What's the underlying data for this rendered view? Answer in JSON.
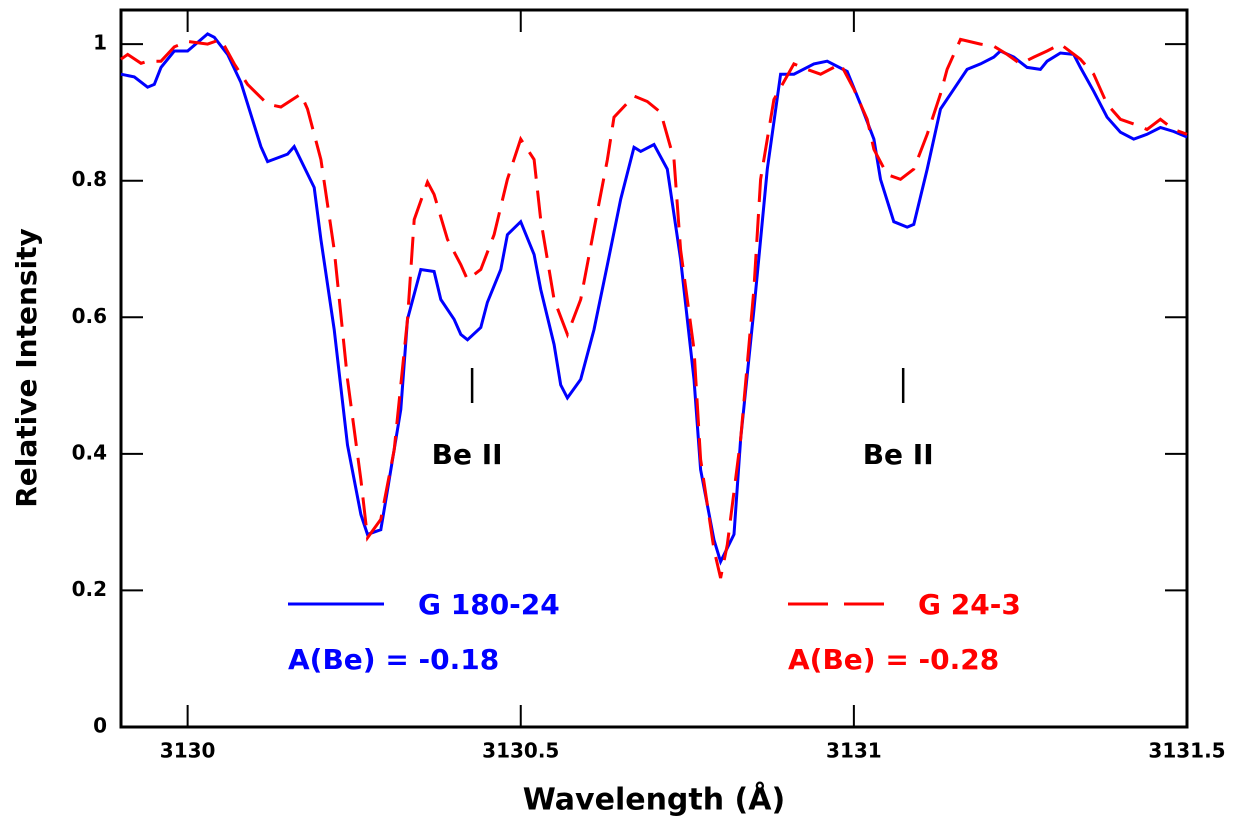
{
  "chart_data": {
    "type": "line",
    "x_label": "Wavelength (Å)",
    "y_label": "Relative Intensity",
    "xlim": [
      3129.9,
      3131.5
    ],
    "ylim": [
      0,
      1.05
    ],
    "xticks": [
      3130,
      3130.5,
      3131,
      3131.5
    ],
    "yticks": [
      0,
      0.2,
      0.4,
      0.6,
      0.8,
      1
    ],
    "line_markers": [
      {
        "x": 3130.427,
        "label": "Be II"
      },
      {
        "x": 3131.074,
        "label": "Be II"
      }
    ],
    "series": [
      {
        "name": "G 180-24",
        "annotation": "A(Be) = -0.18",
        "color": "#0000ff",
        "line_style": "solid",
        "x": [
          3129.9,
          3129.92,
          3129.94,
          3129.95,
          3129.96,
          3129.98,
          3130.0,
          3130.03,
          3130.04,
          3130.06,
          3130.08,
          3130.11,
          3130.12,
          3130.15,
          3130.16,
          3130.19,
          3130.2,
          3130.22,
          3130.24,
          3130.26,
          3130.27,
          3130.29,
          3130.3,
          3130.32,
          3130.33,
          3130.35,
          3130.37,
          3130.38,
          3130.4,
          3130.41,
          3130.42,
          3130.44,
          3130.45,
          3130.47,
          3130.48,
          3130.5,
          3130.52,
          3130.53,
          3130.55,
          3130.56,
          3130.57,
          3130.59,
          3130.61,
          3130.63,
          3130.65,
          3130.67,
          3130.68,
          3130.7,
          3130.72,
          3130.74,
          3130.76,
          3130.77,
          3130.79,
          3130.8,
          3130.82,
          3130.83,
          3130.85,
          3130.87,
          3130.89,
          3130.91,
          3130.94,
          3130.96,
          3130.99,
          3131.01,
          3131.03,
          3131.04,
          3131.06,
          3131.08,
          3131.09,
          3131.11,
          3131.13,
          3131.15,
          3131.17,
          3131.19,
          3131.21,
          3131.22,
          3131.24,
          3131.26,
          3131.28,
          3131.29,
          3131.31,
          3131.33,
          3131.34,
          3131.36,
          3131.38,
          3131.4,
          3131.42,
          3131.44,
          3131.46,
          3131.48,
          3131.5
        ],
        "values": [
          0.956,
          0.952,
          0.937,
          0.941,
          0.966,
          0.99,
          0.99,
          1.015,
          1.01,
          0.985,
          0.944,
          0.85,
          0.828,
          0.839,
          0.85,
          0.79,
          0.714,
          0.582,
          0.413,
          0.311,
          0.282,
          0.289,
          0.347,
          0.465,
          0.597,
          0.67,
          0.667,
          0.626,
          0.597,
          0.575,
          0.567,
          0.585,
          0.622,
          0.67,
          0.721,
          0.74,
          0.692,
          0.641,
          0.56,
          0.501,
          0.482,
          0.509,
          0.582,
          0.677,
          0.773,
          0.849,
          0.843,
          0.853,
          0.817,
          0.685,
          0.509,
          0.377,
          0.274,
          0.242,
          0.282,
          0.421,
          0.611,
          0.817,
          0.956,
          0.956,
          0.971,
          0.975,
          0.96,
          0.912,
          0.861,
          0.802,
          0.74,
          0.732,
          0.736,
          0.817,
          0.905,
          0.934,
          0.963,
          0.971,
          0.981,
          0.99,
          0.981,
          0.966,
          0.963,
          0.975,
          0.987,
          0.985,
          0.966,
          0.931,
          0.893,
          0.871,
          0.861,
          0.868,
          0.878,
          0.872,
          0.864
        ]
      },
      {
        "name": "G 24-3",
        "annotation": "A(Be) = -0.28",
        "color": "#ff0000",
        "line_style": "dashed",
        "x": [
          3129.9,
          3129.91,
          3129.93,
          3129.94,
          3129.96,
          3129.98,
          3130.0,
          3130.03,
          3130.05,
          3130.07,
          3130.09,
          3130.12,
          3130.14,
          3130.17,
          3130.18,
          3130.2,
          3130.22,
          3130.24,
          3130.26,
          3130.27,
          3130.29,
          3130.31,
          3130.33,
          3130.34,
          3130.36,
          3130.37,
          3130.39,
          3130.41,
          3130.42,
          3130.44,
          3130.46,
          3130.48,
          3130.5,
          3130.52,
          3130.53,
          3130.55,
          3130.57,
          3130.59,
          3130.61,
          3130.63,
          3130.64,
          3130.67,
          3130.69,
          3130.71,
          3130.73,
          3130.74,
          3130.76,
          3130.77,
          3130.79,
          3130.8,
          3130.81,
          3130.83,
          3130.85,
          3130.86,
          3130.88,
          3130.91,
          3130.93,
          3130.95,
          3130.98,
          3131.0,
          3131.02,
          3131.03,
          3131.05,
          3131.07,
          3131.09,
          3131.11,
          3131.13,
          3131.14,
          3131.16,
          3131.19,
          3131.21,
          3131.23,
          3131.25,
          3131.27,
          3131.29,
          3131.31,
          3131.34,
          3131.36,
          3131.38,
          3131.4,
          3131.42,
          3131.44,
          3131.46,
          3131.48,
          3131.5
        ],
        "values": [
          0.978,
          0.985,
          0.972,
          0.975,
          0.975,
          0.996,
          1.004,
          1.0,
          1.007,
          0.971,
          0.941,
          0.912,
          0.908,
          0.927,
          0.905,
          0.831,
          0.699,
          0.509,
          0.362,
          0.277,
          0.304,
          0.406,
          0.597,
          0.743,
          0.798,
          0.78,
          0.714,
          0.677,
          0.655,
          0.67,
          0.721,
          0.802,
          0.861,
          0.831,
          0.743,
          0.626,
          0.575,
          0.626,
          0.729,
          0.831,
          0.893,
          0.924,
          0.916,
          0.9,
          0.831,
          0.699,
          0.553,
          0.392,
          0.26,
          0.218,
          0.267,
          0.421,
          0.641,
          0.802,
          0.919,
          0.971,
          0.963,
          0.956,
          0.971,
          0.934,
          0.89,
          0.846,
          0.809,
          0.802,
          0.817,
          0.868,
          0.927,
          0.963,
          1.007,
          1.0,
          0.997,
          0.985,
          0.971,
          0.981,
          0.99,
          1.0,
          0.978,
          0.956,
          0.912,
          0.89,
          0.883,
          0.875,
          0.89,
          0.875,
          0.868
        ]
      }
    ]
  }
}
